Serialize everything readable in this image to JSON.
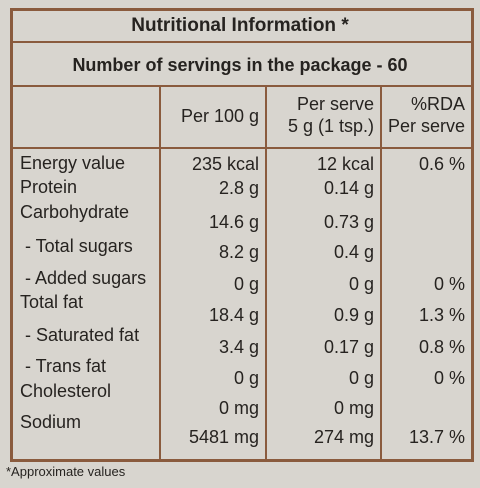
{
  "header": {
    "title": "Nutritional Information *",
    "servings": "Number of servings in the package - 60"
  },
  "table": {
    "columns": [
      [
        "Per 100 g"
      ],
      [
        "Per serve",
        "5 g (1 tsp.)"
      ],
      [
        "%RDA",
        "Per serve"
      ]
    ],
    "rows": [
      [
        "Energy value",
        "235 kcal",
        "12 kcal",
        "0.6 %"
      ],
      [
        "Protein",
        "2.8 g",
        "0.14 g"
      ],
      [
        "Carbohydrate",
        "14.6 g",
        "0.73 g"
      ],
      [
        " - Total sugars",
        "8.2 g",
        "0.4 g"
      ],
      [
        " - Added sugars",
        "0 g",
        "0 g",
        "0 %"
      ],
      [
        "Total fat",
        "18.4 g",
        "0.9 g",
        "1.3 %"
      ],
      [
        " - Saturated fat",
        "3.4 g",
        "0.17 g",
        "0.8 %"
      ],
      [
        " - Trans fat",
        "0 g",
        "0 g",
        "0 %"
      ],
      [
        "Cholesterol",
        "0 mg",
        "0 mg"
      ],
      [
        "Sodium",
        "5481 mg",
        "274 mg",
        "13.7 %"
      ]
    ]
  },
  "footnote": "*Approximate values"
}
